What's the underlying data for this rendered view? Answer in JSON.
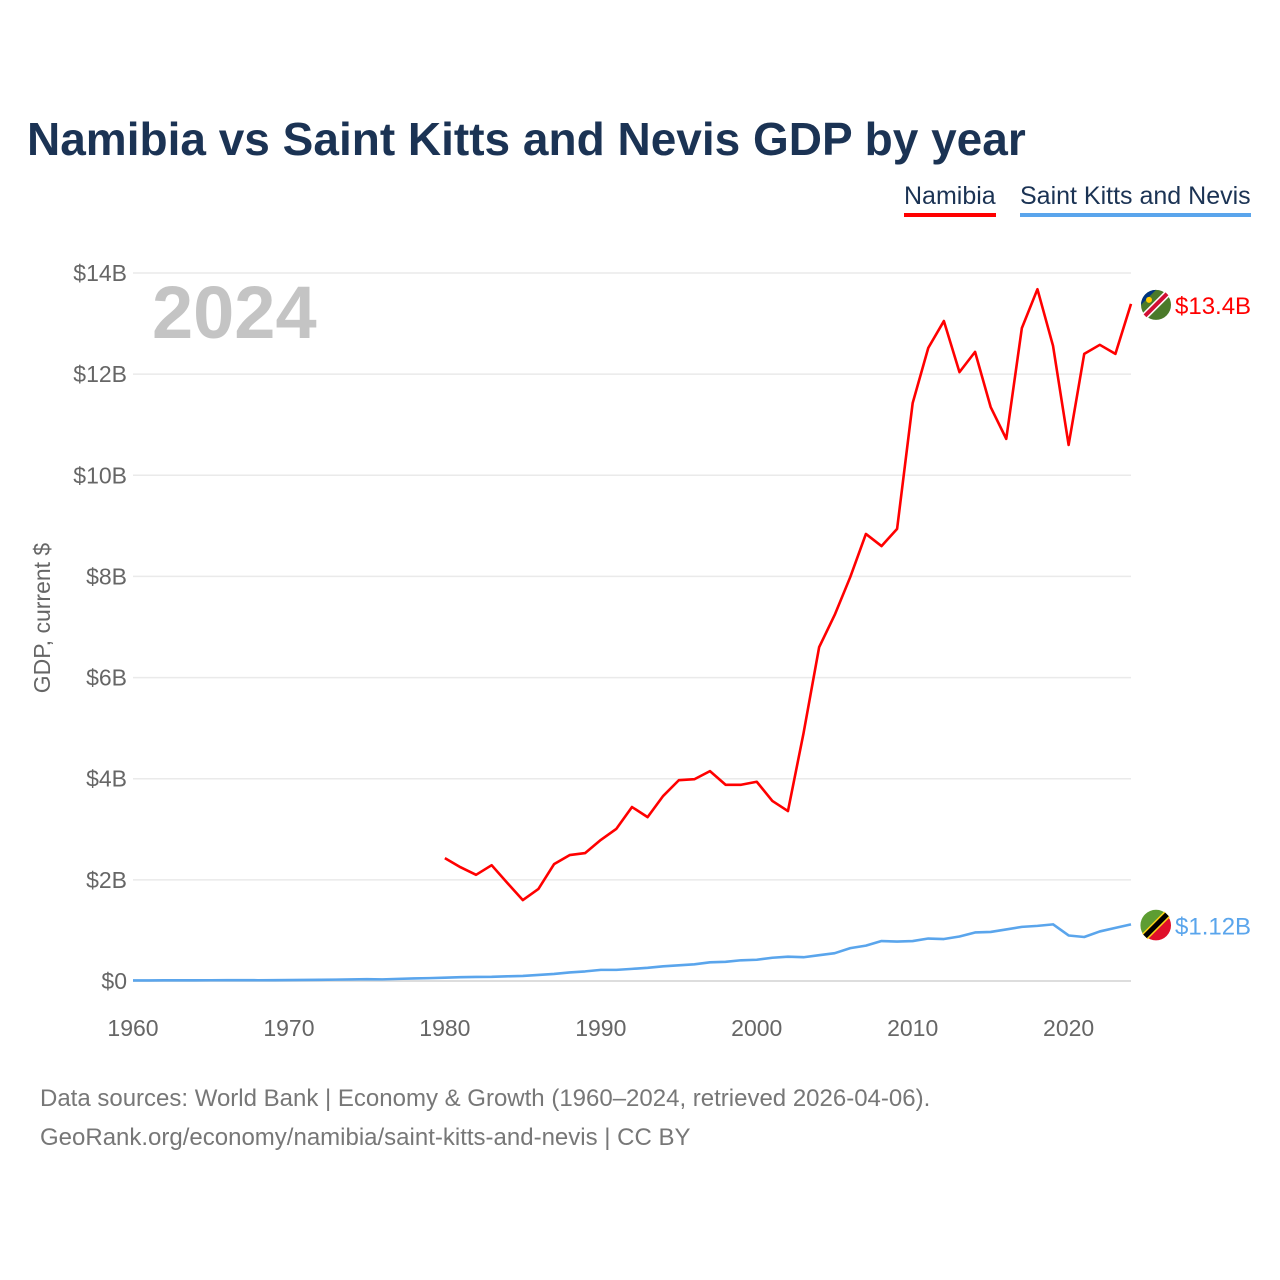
{
  "title": "Namibia vs Saint Kitts and Nevis GDP by year",
  "footer": {
    "line1": "Data sources: World Bank | Economy & Growth (1960–2024, retrieved 2026-04-06).",
    "line2": "GeoRank.org/economy/namibia/saint-kitts-and-nevis | CC BY"
  },
  "chart_data": {
    "type": "line",
    "title": "Namibia vs Saint Kitts and Nevis GDP by year",
    "year_label": "2024",
    "xlabel": "",
    "ylabel": "GDP, current $",
    "xlim": [
      1960,
      2024
    ],
    "ylim": [
      0,
      14
    ],
    "x_ticks": [
      1960,
      1970,
      1980,
      1990,
      2000,
      2010,
      2020
    ],
    "x_tick_labels": [
      "1960",
      "1970",
      "1980",
      "1990",
      "2000",
      "2010",
      "2020"
    ],
    "y_ticks": [
      0,
      2,
      4,
      6,
      8,
      10,
      12,
      14
    ],
    "y_tick_labels": [
      "$0",
      "$2B",
      "$4B",
      "$6B",
      "$8B",
      "$10B",
      "$12B",
      "$14B"
    ],
    "grid": true,
    "legend_position": "top-right",
    "series": [
      {
        "name": "Namibia",
        "color": "#ff0000",
        "start_year": 1980,
        "end_label": "$13.4B",
        "values": [
          2.43,
          2.25,
          2.1,
          2.29,
          1.94,
          1.6,
          1.82,
          2.31,
          2.49,
          2.53,
          2.79,
          3.01,
          3.44,
          3.24,
          3.66,
          3.97,
          3.99,
          4.15,
          3.88,
          3.88,
          3.94,
          3.56,
          3.36,
          4.9,
          6.6,
          7.24,
          7.99,
          8.84,
          8.6,
          8.94,
          11.43,
          12.52,
          13.05,
          12.04,
          12.44,
          11.35,
          10.72,
          12.91,
          13.68,
          12.56,
          10.6,
          12.4,
          12.58,
          12.4,
          13.39
        ]
      },
      {
        "name": "Saint Kitts and Nevis",
        "color": "#5aa5ec",
        "start_year": 1960,
        "end_label": "$1.12B",
        "values": [
          0.012,
          0.012,
          0.013,
          0.014,
          0.014,
          0.015,
          0.016,
          0.016,
          0.015,
          0.017,
          0.019,
          0.021,
          0.024,
          0.027,
          0.031,
          0.035,
          0.032,
          0.042,
          0.05,
          0.057,
          0.066,
          0.076,
          0.08,
          0.083,
          0.093,
          0.1,
          0.12,
          0.14,
          0.17,
          0.19,
          0.22,
          0.22,
          0.24,
          0.26,
          0.29,
          0.31,
          0.33,
          0.37,
          0.38,
          0.41,
          0.42,
          0.46,
          0.48,
          0.47,
          0.51,
          0.55,
          0.65,
          0.7,
          0.79,
          0.78,
          0.79,
          0.84,
          0.83,
          0.88,
          0.96,
          0.97,
          1.02,
          1.07,
          1.09,
          1.12,
          0.9,
          0.87,
          0.98,
          1.05,
          1.12
        ]
      }
    ]
  }
}
